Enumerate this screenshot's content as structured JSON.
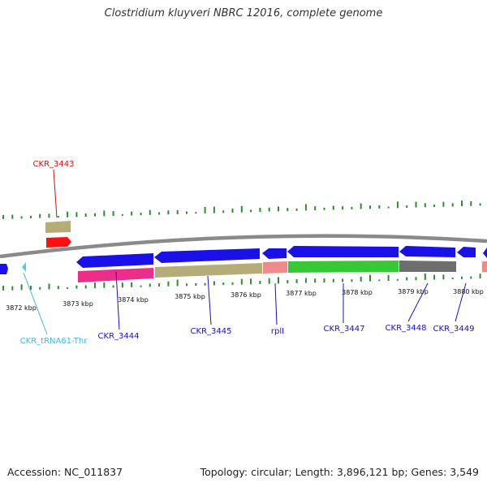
{
  "title": "Clostridium kluyveri NBRC 12016, complete genome",
  "footer": {
    "accession": "Accession: NC_011837",
    "summary": "Topology: circular; Length: 3,896,121 bp; Genes: 3,549"
  },
  "colors": {
    "backbone": "#8a8a8a",
    "cds": "#1a10e8",
    "trna": "#55c8ef",
    "rrna": "#ff1010",
    "gc_tick": "#2e8b2e",
    "label_blue": "#1a10c8",
    "label_red": "#d01010",
    "label_cyan": "#3fb8e0",
    "fill_khaki": "#b5ad78",
    "fill_magenta": "#ec2d8a",
    "fill_salmon": "#ee8a8a",
    "fill_green": "#37c837",
    "fill_gray": "#6e6e6e"
  },
  "scale_ticks": [
    "3872 kbp",
    "3873 kbp",
    "3874 kbp",
    "3875 kbp",
    "3876 kbp",
    "3877 kbp",
    "3878 kbp",
    "3879 kbp",
    "3880 kbp"
  ],
  "gene_labels": [
    {
      "name": "CKR_3443",
      "color": "label_red"
    },
    {
      "name": "CKR_tRNA61-Thr",
      "color": "label_cyan"
    },
    {
      "name": "CKR_3444",
      "color": "label_blue"
    },
    {
      "name": "CKR_3445",
      "color": "label_blue"
    },
    {
      "name": "rplI",
      "color": "label_blue"
    },
    {
      "name": "CKR_3447",
      "color": "label_blue"
    },
    {
      "name": "CKR_3448",
      "color": "label_blue"
    },
    {
      "name": "CKR_3449",
      "color": "label_blue"
    }
  ]
}
